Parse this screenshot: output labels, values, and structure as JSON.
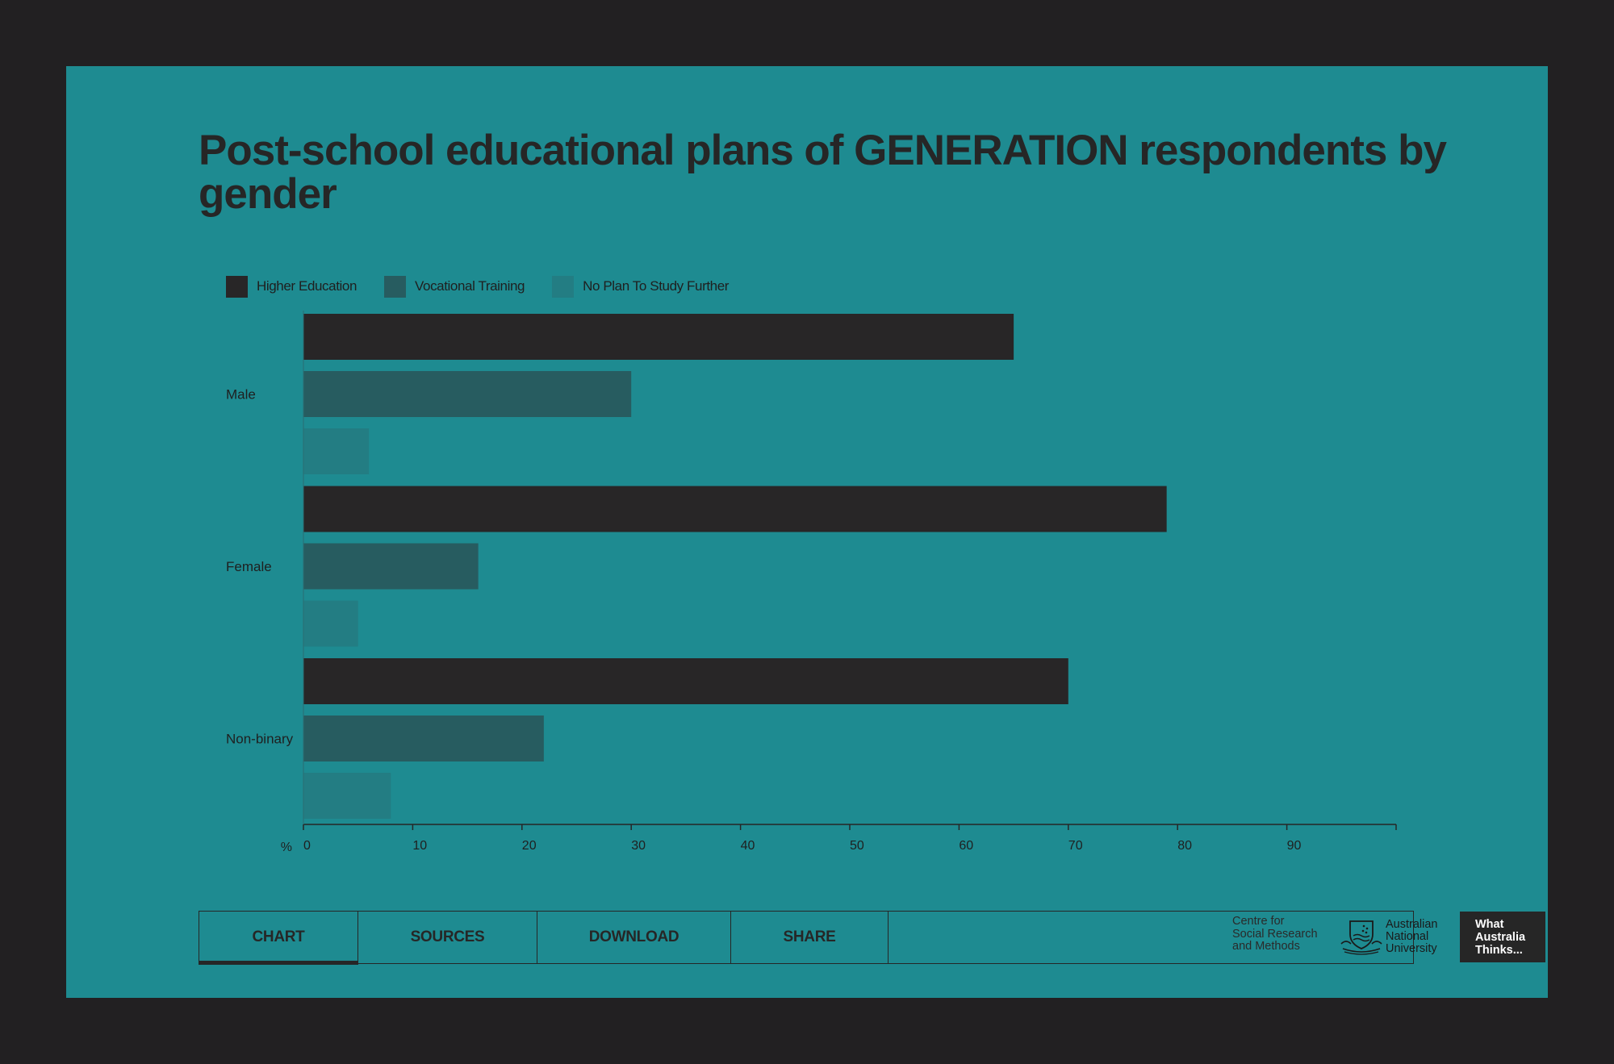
{
  "chart_data": {
    "type": "bar",
    "orientation": "horizontal",
    "title": "Post-school educational plans of GENERATION respondents by gender",
    "categories": [
      "Male",
      "Female",
      "Non-binary"
    ],
    "series": [
      {
        "name": "Higher Education",
        "color": "#282627",
        "values": [
          65,
          79,
          70
        ]
      },
      {
        "name": "Vocational Training",
        "color": "#275c60",
        "values": [
          30,
          16,
          22
        ]
      },
      {
        "name": "No Plan To Study Further",
        "color": "#237d83",
        "values": [
          6,
          5,
          8
        ]
      }
    ],
    "xlabel": "%",
    "xlim": [
      0,
      100
    ],
    "xticks": [
      0,
      10,
      20,
      30,
      40,
      50,
      60,
      70,
      80,
      90
    ],
    "grid": false,
    "legend_position": "top-left"
  },
  "tabs": [
    {
      "label": "CHART",
      "active": true
    },
    {
      "label": "SOURCES",
      "active": false
    },
    {
      "label": "DOWNLOAD",
      "active": false
    },
    {
      "label": "SHARE",
      "active": false
    }
  ],
  "footer": {
    "org_lines": [
      "Centre for",
      "Social Research",
      "and Methods"
    ],
    "university_lines": [
      "Australian",
      "National",
      "University"
    ],
    "brand_lines": [
      "What",
      "Australia",
      "Thinks..."
    ],
    "crest_icon": "anu-crest-icon"
  },
  "colors": {
    "background": "#222022",
    "panel": "#1e8b91",
    "text": "#262626"
  }
}
